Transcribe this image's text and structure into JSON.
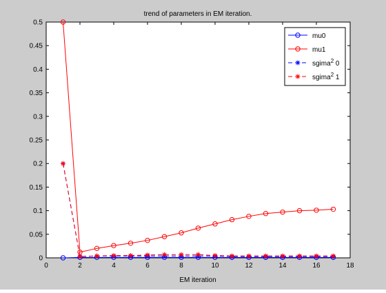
{
  "chart_data": {
    "type": "line",
    "title": "trend of parameters in EM iteration.",
    "xlabel": "EM iteration",
    "ylabel": "",
    "xlim": [
      0,
      18
    ],
    "ylim": [
      0,
      0.5
    ],
    "xticks": [
      0,
      2,
      4,
      6,
      8,
      10,
      12,
      14,
      16,
      18
    ],
    "yticks": [
      0,
      0.05,
      0.1,
      0.15,
      0.2,
      0.25,
      0.3,
      0.35,
      0.4,
      0.45,
      0.5
    ],
    "grid": false,
    "legend_position": "top-right",
    "x": [
      1,
      2,
      3,
      4,
      5,
      6,
      7,
      8,
      9,
      10,
      11,
      12,
      13,
      14,
      15,
      16,
      17
    ],
    "series": [
      {
        "name": "mu0",
        "color": "#0000ff",
        "line": "solid",
        "marker": "circle",
        "values": [
          0,
          0.001,
          0.001,
          0.001,
          0.001,
          0.001,
          0.001,
          0.001,
          0.001,
          0.001,
          0.001,
          0.001,
          0.001,
          0.001,
          0.001,
          0.001,
          0.001
        ]
      },
      {
        "name": "mu1",
        "color": "#ff0000",
        "line": "solid",
        "marker": "circle",
        "values": [
          0.5,
          0.012,
          0.02,
          0.026,
          0.031,
          0.037,
          0.045,
          0.053,
          0.063,
          0.072,
          0.081,
          0.088,
          0.094,
          0.097,
          0.1,
          0.101,
          0.103
        ]
      },
      {
        "name": "sgima^2 0",
        "color": "#0000ff",
        "line": "dashed",
        "marker": "star",
        "values": [
          0.2,
          0.003,
          0.004,
          0.004,
          0.004,
          0.004,
          0.004,
          0.004,
          0.004,
          0.004,
          0.003,
          0.003,
          0.003,
          0.003,
          0.003,
          0.003,
          0.003
        ]
      },
      {
        "name": "sgima^2 1",
        "color": "#ff0000",
        "line": "dashed",
        "marker": "star",
        "values": [
          0.2,
          0.003,
          0.004,
          0.005,
          0.005,
          0.006,
          0.007,
          0.007,
          0.007,
          0.005,
          0.004,
          0.004,
          0.004,
          0.004,
          0.004,
          0.004,
          0.004
        ]
      }
    ],
    "legend": [
      {
        "base": "mu0",
        "sup": "",
        "tail": ""
      },
      {
        "base": "mu1",
        "sup": "",
        "tail": ""
      },
      {
        "base": "sgima",
        "sup": "2",
        "tail": " 0"
      },
      {
        "base": "sgima",
        "sup": "2",
        "tail": " 1"
      }
    ]
  }
}
